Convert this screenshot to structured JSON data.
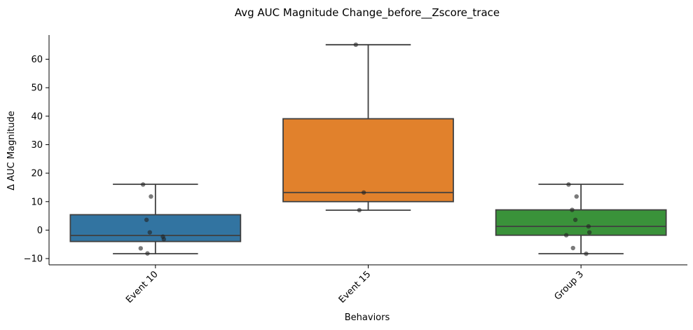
{
  "chart_data": {
    "type": "box",
    "title": "Avg AUC Magnitude Change_before__Zscore_trace",
    "xlabel": "Behaviors",
    "ylabel": "Δ AUC Magnitude",
    "ylim": [
      -12.2,
      68.5
    ],
    "yticks": [
      -10,
      0,
      10,
      20,
      30,
      40,
      50,
      60
    ],
    "categories": [
      "Event 10",
      "Event 15",
      "Group 3"
    ],
    "colors": [
      "#3274a1",
      "#e1812c",
      "#3a923a"
    ],
    "boxes": [
      {
        "name": "Event 10",
        "q1": -4.0,
        "median": -1.9,
        "q3": 5.4,
        "whisker_low": -8.3,
        "whisker_high": 16.1,
        "points": [
          16.0,
          11.8,
          3.6,
          -0.8,
          -2.3,
          -3.2,
          -6.4,
          -8.2
        ]
      },
      {
        "name": "Event 15",
        "q1": 10.0,
        "median": 13.2,
        "q3": 39.1,
        "whisker_low": 7.0,
        "whisker_high": 65.1,
        "points": [
          65.1,
          13.2,
          7.0
        ]
      },
      {
        "name": "Group 3",
        "q1": -1.8,
        "median": 1.3,
        "q3": 7.1,
        "whisker_low": -8.3,
        "whisker_high": 16.1,
        "points": [
          16.0,
          11.8,
          7.1,
          3.6,
          1.3,
          -0.8,
          -1.8,
          -6.3,
          -8.3
        ]
      }
    ]
  }
}
